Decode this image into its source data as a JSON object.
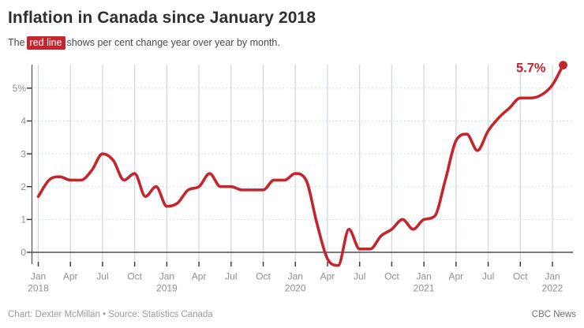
{
  "header": {
    "title": "Inflation in Canada since January 2018",
    "subtitle_prefix": "The",
    "subtitle_badge": "red line",
    "subtitle_suffix": "shows per cent change year over year by month."
  },
  "footer": {
    "credit": "Chart: Dexter McMillan • Source: Statistics Canada",
    "brand": "CBC News"
  },
  "colors": {
    "accent": "#c4262d",
    "grid_vertical": "#ccd6dc",
    "grid_dotted": "#b5c5cf",
    "axis": "#4f4f4f",
    "zero_line": "#4f4f4f",
    "tick": "#3f3f3f",
    "axis_label": "#8f8f8f",
    "title_text": "#2f2f2f",
    "subtitle_text": "#4a4a4a"
  },
  "chart_data": {
    "type": "line",
    "title": "Inflation in Canada since January 2018",
    "series_name": "Per cent change year over year by month",
    "x": [
      "Jan 2018",
      "Feb 2018",
      "Mar 2018",
      "Apr 2018",
      "May 2018",
      "Jun 2018",
      "Jul 2018",
      "Aug 2018",
      "Sep 2018",
      "Oct 2018",
      "Nov 2018",
      "Dec 2018",
      "Jan 2019",
      "Feb 2019",
      "Mar 2019",
      "Apr 2019",
      "May 2019",
      "Jun 2019",
      "Jul 2019",
      "Aug 2019",
      "Sep 2019",
      "Oct 2019",
      "Nov 2019",
      "Dec 2019",
      "Jan 2020",
      "Feb 2020",
      "Mar 2020",
      "Apr 2020",
      "May 2020",
      "Jun 2020",
      "Jul 2020",
      "Aug 2020",
      "Sep 2020",
      "Oct 2020",
      "Nov 2020",
      "Dec 2020",
      "Jan 2021",
      "Feb 2021",
      "Mar 2021",
      "Apr 2021",
      "May 2021",
      "Jun 2021",
      "Jul 2021",
      "Aug 2021",
      "Sep 2021",
      "Oct 2021",
      "Nov 2021",
      "Dec 2021",
      "Jan 2022",
      "Feb 2022"
    ],
    "values": [
      1.7,
      2.2,
      2.3,
      2.2,
      2.2,
      2.5,
      3.0,
      2.8,
      2.2,
      2.4,
      1.7,
      2.0,
      1.4,
      1.5,
      1.9,
      2.0,
      2.4,
      2.0,
      2.0,
      1.9,
      1.9,
      1.9,
      2.2,
      2.2,
      2.4,
      2.2,
      0.9,
      -0.2,
      -0.4,
      0.7,
      0.1,
      0.1,
      0.5,
      0.7,
      1.0,
      0.7,
      1.0,
      1.1,
      2.2,
      3.4,
      3.6,
      3.1,
      3.7,
      4.1,
      4.4,
      4.7,
      4.7,
      4.8,
      5.1,
      5.7
    ],
    "ylim": [
      -0.5,
      5.8
    ],
    "grid": true,
    "legend": "none",
    "y_ticks": [
      {
        "v": 0,
        "label": "0"
      },
      {
        "v": 1,
        "label": "1"
      },
      {
        "v": 2,
        "label": "2"
      },
      {
        "v": 3,
        "label": "3"
      },
      {
        "v": 4,
        "label": "4"
      },
      {
        "v": 5,
        "label": "5%"
      }
    ],
    "x_ticks": [
      {
        "i": 0,
        "label": "Jan",
        "year": "2018"
      },
      {
        "i": 3,
        "label": "Apr"
      },
      {
        "i": 6,
        "label": "Jul"
      },
      {
        "i": 9,
        "label": "Oct"
      },
      {
        "i": 12,
        "label": "Jan",
        "year": "2019"
      },
      {
        "i": 15,
        "label": "Apr"
      },
      {
        "i": 18,
        "label": "Jul"
      },
      {
        "i": 21,
        "label": "Oct"
      },
      {
        "i": 24,
        "label": "Jan",
        "year": "2020"
      },
      {
        "i": 27,
        "label": "Apr"
      },
      {
        "i": 30,
        "label": "Jul"
      },
      {
        "i": 33,
        "label": "Oct"
      },
      {
        "i": 36,
        "label": "Jan",
        "year": "2021"
      },
      {
        "i": 39,
        "label": "Apr"
      },
      {
        "i": 42,
        "label": "Jul"
      },
      {
        "i": 45,
        "label": "Oct"
      },
      {
        "i": 48,
        "label": "Jan",
        "year": "2022"
      }
    ],
    "annotation": {
      "label": "5.7%",
      "x_index": 49,
      "value": 5.7
    }
  }
}
